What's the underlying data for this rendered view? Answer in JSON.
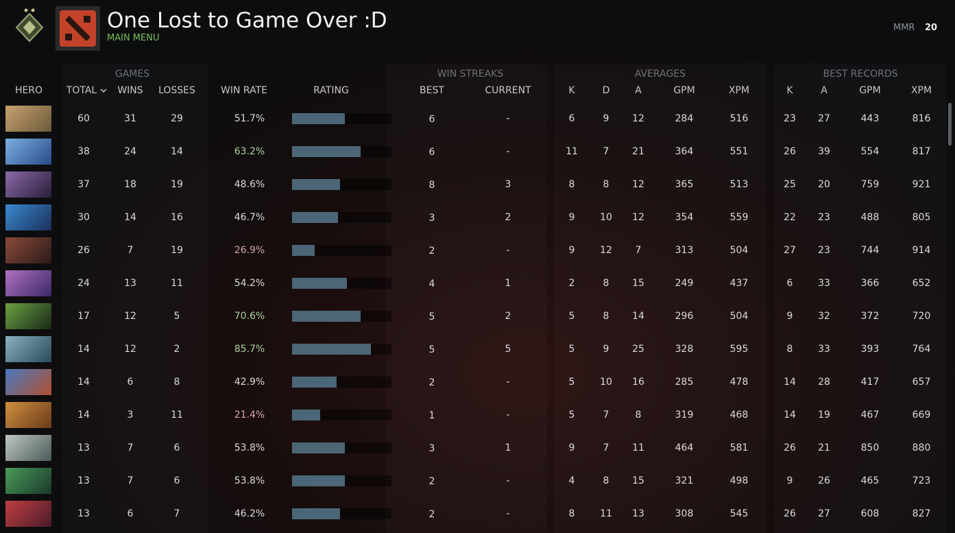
{
  "header": {
    "title": "One Lost to Game Over :D",
    "subtitle": "MAIN MENU",
    "mmr_label": "MMR",
    "mmr_value": "20"
  },
  "table": {
    "groups": [
      "GAMES",
      "WIN STREAKS",
      "AVERAGES",
      "BEST RECORDS"
    ],
    "columns": [
      "HERO",
      "TOTAL",
      "WINS",
      "LOSSES",
      "WIN RATE",
      "RATING",
      "BEST",
      "CURRENT",
      "K",
      "D",
      "A",
      "GPM",
      "XPM",
      "K",
      "A",
      "GPM",
      "XPM"
    ],
    "rating_range": [
      0,
      100
    ],
    "rows": [
      {
        "cells": [
          60,
          31,
          29,
          "51.7%",
          6,
          "-",
          6,
          9,
          12,
          284,
          516,
          23,
          27,
          443,
          816
        ],
        "rating": 53
      },
      {
        "cells": [
          38,
          24,
          14,
          "63.2%",
          6,
          "-",
          11,
          7,
          21,
          364,
          551,
          26,
          39,
          554,
          817
        ],
        "rating": 69
      },
      {
        "cells": [
          37,
          18,
          19,
          "48.6%",
          8,
          3,
          8,
          8,
          12,
          365,
          513,
          25,
          20,
          759,
          921
        ],
        "rating": 48
      },
      {
        "cells": [
          30,
          14,
          16,
          "46.7%",
          3,
          2,
          9,
          10,
          12,
          354,
          559,
          22,
          23,
          488,
          805
        ],
        "rating": 46
      },
      {
        "cells": [
          26,
          7,
          19,
          "26.9%",
          2,
          "-",
          9,
          12,
          7,
          313,
          504,
          27,
          23,
          744,
          914
        ],
        "rating": 23
      },
      {
        "cells": [
          24,
          13,
          11,
          "54.2%",
          4,
          1,
          2,
          8,
          15,
          249,
          437,
          6,
          33,
          366,
          652
        ],
        "rating": 55
      },
      {
        "cells": [
          17,
          12,
          5,
          "70.6%",
          5,
          2,
          5,
          8,
          14,
          296,
          504,
          9,
          32,
          372,
          720
        ],
        "rating": 69
      },
      {
        "cells": [
          14,
          12,
          2,
          "85.7%",
          5,
          5,
          5,
          9,
          25,
          328,
          595,
          8,
          33,
          393,
          764
        ],
        "rating": 79
      },
      {
        "cells": [
          14,
          6,
          8,
          "42.9%",
          2,
          "-",
          5,
          10,
          16,
          285,
          478,
          14,
          28,
          417,
          657
        ],
        "rating": 45
      },
      {
        "cells": [
          14,
          3,
          11,
          "21.4%",
          1,
          "-",
          5,
          7,
          8,
          319,
          468,
          14,
          19,
          467,
          669
        ],
        "rating": 28
      },
      {
        "cells": [
          13,
          7,
          6,
          "53.8%",
          3,
          1,
          9,
          7,
          11,
          464,
          581,
          26,
          21,
          850,
          880
        ],
        "rating": 53
      },
      {
        "cells": [
          13,
          7,
          6,
          "53.8%",
          2,
          "-",
          4,
          8,
          15,
          321,
          498,
          9,
          26,
          465,
          723
        ],
        "rating": 53
      },
      {
        "cells": [
          13,
          6,
          7,
          "46.2%",
          2,
          "-",
          8,
          11,
          13,
          308,
          545,
          26,
          27,
          608,
          827
        ],
        "rating": 48
      }
    ]
  }
}
